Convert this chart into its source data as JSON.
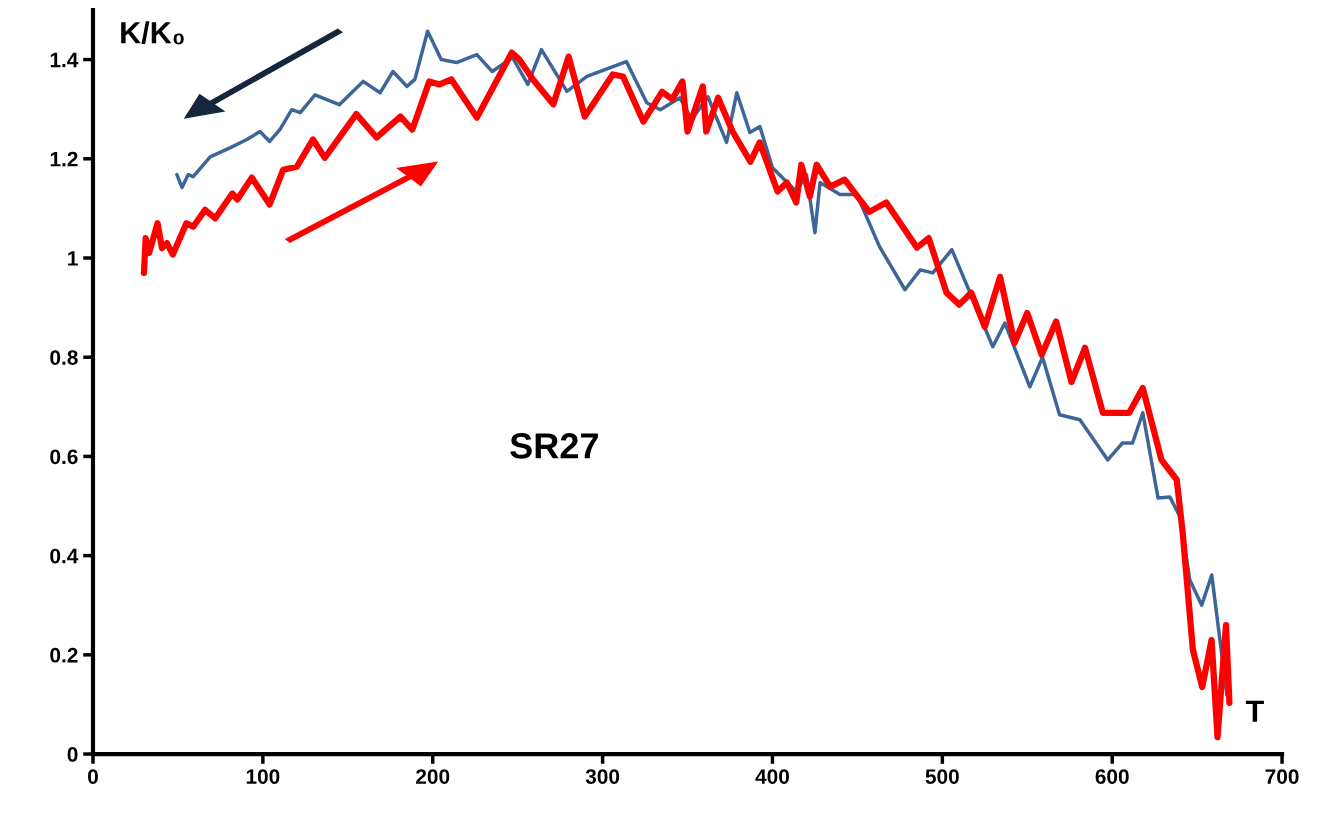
{
  "chart_data": {
    "type": "line",
    "xlabel": "T",
    "ylabel": "K/K₀",
    "annotations": [
      "SR27"
    ],
    "xlim": [
      0,
      700
    ],
    "xticks": [
      0,
      100,
      200,
      300,
      400,
      500,
      600,
      700
    ],
    "ylim": [
      0,
      1.5
    ],
    "yticks": [
      0,
      0.2,
      0.4,
      0.6,
      0.8,
      1,
      1.2,
      1.4
    ],
    "grid": false,
    "legend": false,
    "marker": "none",
    "line_style": "solid",
    "series": [
      {
        "color": "#3c6698",
        "x": [
          49.4,
          52.4,
          56,
          59,
          69,
          80.6,
          90.6,
          98.3,
          104,
          110,
          117,
          122,
          130.7,
          145,
          159,
          169,
          176.6,
          184.8,
          189.5,
          197,
          205,
          214,
          226,
          235,
          247,
          256,
          264,
          279,
          290.8,
          314,
          326,
          334,
          345.5,
          352.5,
          362,
          373,
          379,
          386.7,
          392.6,
          400,
          414,
          420,
          425,
          428,
          439.7,
          449.7,
          463,
          478,
          487,
          494.4,
          505.6,
          529.7,
          536.8,
          551.5,
          559,
          569,
          581,
          597.4,
          606,
          612,
          618,
          627,
          634,
          640,
          645.7,
          652.7,
          658.6,
          667.5
        ],
        "values": [
          1.168,
          1.142,
          1.168,
          1.164,
          1.204,
          1.222,
          1.239,
          1.255,
          1.235,
          1.259,
          1.299,
          1.293,
          1.329,
          1.309,
          1.356,
          1.333,
          1.376,
          1.346,
          1.36,
          1.457,
          1.4,
          1.394,
          1.41,
          1.376,
          1.404,
          1.35,
          1.42,
          1.336,
          1.366,
          1.396,
          1.313,
          1.299,
          1.323,
          1.279,
          1.325,
          1.233,
          1.333,
          1.253,
          1.265,
          1.182,
          1.134,
          1.168,
          1.051,
          1.152,
          1.128,
          1.128,
          1.023,
          0.936,
          0.976,
          0.97,
          1.017,
          0.821,
          0.869,
          0.74,
          0.8,
          0.684,
          0.674,
          0.593,
          0.627,
          0.627,
          0.688,
          0.516,
          0.518,
          0.478,
          0.351,
          0.3,
          0.361,
          0.119
        ]
      },
      {
        "color": "#ff0000",
        "x": [
          30,
          31,
          33,
          38,
          40.6,
          43.5,
          47,
          55,
          59,
          66,
          72,
          82,
          85,
          93.5,
          104,
          112,
          120,
          129.5,
          136.5,
          155,
          167,
          181,
          188,
          198,
          204,
          211,
          226,
          246.5,
          251,
          259,
          271,
          280,
          289.5,
          306,
          312,
          324,
          335,
          341,
          347,
          350,
          359,
          361,
          368,
          376.5,
          387,
          392.5,
          403,
          408.5,
          414,
          417,
          422,
          426,
          434,
          442.5,
          457,
          467,
          485,
          492,
          502.5,
          510,
          517,
          525,
          534,
          542.5,
          550,
          558.5,
          567,
          576,
          584,
          594.5,
          602.5,
          610,
          618,
          629,
          638,
          641.5,
          647.5,
          653,
          658.5,
          662,
          667,
          669
        ],
        "values": [
          0.97,
          1.04,
          1.01,
          1.07,
          1.02,
          1.03,
          1.007,
          1.07,
          1.063,
          1.097,
          1.08,
          1.13,
          1.118,
          1.162,
          1.108,
          1.178,
          1.184,
          1.239,
          1.202,
          1.29,
          1.243,
          1.285,
          1.259,
          1.356,
          1.35,
          1.36,
          1.283,
          1.414,
          1.4,
          1.36,
          1.31,
          1.406,
          1.285,
          1.37,
          1.366,
          1.275,
          1.335,
          1.32,
          1.356,
          1.255,
          1.346,
          1.255,
          1.323,
          1.255,
          1.194,
          1.233,
          1.134,
          1.152,
          1.112,
          1.188,
          1.124,
          1.188,
          1.144,
          1.158,
          1.093,
          1.112,
          1.021,
          1.04,
          0.93,
          0.906,
          0.93,
          0.861,
          0.962,
          0.829,
          0.889,
          0.805,
          0.872,
          0.75,
          0.819,
          0.688,
          0.688,
          0.688,
          0.738,
          0.593,
          0.553,
          0.446,
          0.21,
          0.135,
          0.23,
          0.034,
          0.26,
          0.103
        ]
      }
    ]
  }
}
